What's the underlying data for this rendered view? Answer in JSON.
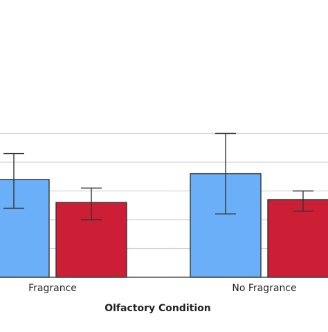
{
  "chart_data": {
    "type": "bar",
    "xlabel": "Olfactory Condition",
    "categories": [
      "Fragrance",
      "No Fragrance"
    ],
    "series": [
      {
        "values": [
          3.4,
          3.6
        ],
        "error": [
          [
            2.4,
            4.3
          ],
          [
            2.2,
            5.0
          ]
        ],
        "color": "#6aaff7"
      },
      {
        "values": [
          2.6,
          2.7
        ],
        "error": [
          [
            2.0,
            3.1
          ],
          [
            2.3,
            3.0
          ]
        ],
        "color": "#cc1f35"
      }
    ],
    "ylim": [
      -3.0,
      5.5
    ],
    "gridline_step": 1.0,
    "grid": true,
    "colors": {
      "grid": "#d3d3d3",
      "axis": "#4d4d4d",
      "bar_edge": "#333333",
      "error_bar": "#333333"
    }
  }
}
